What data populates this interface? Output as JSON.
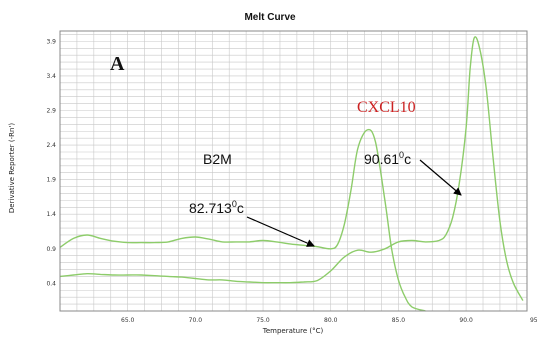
{
  "chart_data": {
    "type": "line",
    "title": "Melt Curve",
    "xlabel": "Temperature (°C)",
    "ylabel": "Derivative Reporter (-Rn')",
    "xlim": [
      60,
      94.5
    ],
    "ylim": [
      0,
      4.05
    ],
    "x_ticks": [
      {
        "value": 65,
        "label": "65.0"
      },
      {
        "value": 70,
        "label": "70.0"
      },
      {
        "value": 75,
        "label": "75.0"
      },
      {
        "value": 80,
        "label": "80.0"
      },
      {
        "value": 85,
        "label": "85.0"
      },
      {
        "value": 90,
        "label": "90.0"
      },
      {
        "value": 95,
        "label": "95"
      }
    ],
    "y_ticks": [
      {
        "value": 0.4,
        "label": "0.4"
      },
      {
        "value": 0.9,
        "label": "0.9"
      },
      {
        "value": 1.4,
        "label": "1.4"
      },
      {
        "value": 1.9,
        "label": "1.9"
      },
      {
        "value": 2.4,
        "label": "2.4"
      },
      {
        "value": 2.9,
        "label": "2.9"
      },
      {
        "value": 3.4,
        "label": "3.4"
      },
      {
        "value": 3.9,
        "label": "3.9"
      }
    ],
    "grid": true,
    "series": [
      {
        "color": "#8dcc6a",
        "points": [
          [
            60,
            0.92
          ],
          [
            61,
            1.05
          ],
          [
            62,
            1.1
          ],
          [
            63,
            1.05
          ],
          [
            64,
            1.01
          ],
          [
            65,
            0.99
          ],
          [
            66,
            0.99
          ],
          [
            67,
            0.99
          ],
          [
            68,
            1.0
          ],
          [
            69,
            1.05
          ],
          [
            70,
            1.07
          ],
          [
            71,
            1.04
          ],
          [
            72,
            1.0
          ],
          [
            73,
            1.0
          ],
          [
            74,
            1.0
          ],
          [
            75,
            1.02
          ],
          [
            76,
            1.0
          ],
          [
            77,
            0.97
          ],
          [
            78,
            0.95
          ],
          [
            79,
            0.93
          ],
          [
            80,
            0.9
          ],
          [
            80.5,
            0.96
          ],
          [
            81,
            1.25
          ],
          [
            81.5,
            1.75
          ],
          [
            82,
            2.35
          ],
          [
            82.7,
            2.62
          ],
          [
            83.3,
            2.45
          ],
          [
            84,
            1.6
          ],
          [
            84.5,
            0.9
          ],
          [
            85,
            0.45
          ],
          [
            85.5,
            0.2
          ],
          [
            86,
            0.06
          ],
          [
            87,
            0.0
          ]
        ]
      },
      {
        "color": "#8dcc6a",
        "points": [
          [
            60,
            0.5
          ],
          [
            61,
            0.52
          ],
          [
            62,
            0.54
          ],
          [
            63,
            0.53
          ],
          [
            64,
            0.52
          ],
          [
            65,
            0.52
          ],
          [
            66,
            0.52
          ],
          [
            67,
            0.51
          ],
          [
            68,
            0.5
          ],
          [
            69,
            0.49
          ],
          [
            70,
            0.47
          ],
          [
            71,
            0.45
          ],
          [
            72,
            0.45
          ],
          [
            73,
            0.43
          ],
          [
            74,
            0.42
          ],
          [
            75,
            0.41
          ],
          [
            76,
            0.41
          ],
          [
            77,
            0.41
          ],
          [
            78,
            0.42
          ],
          [
            79,
            0.44
          ],
          [
            80,
            0.58
          ],
          [
            81,
            0.78
          ],
          [
            82,
            0.88
          ],
          [
            83,
            0.85
          ],
          [
            84,
            0.9
          ],
          [
            85,
            1.0
          ],
          [
            86,
            1.02
          ],
          [
            87,
            1.0
          ],
          [
            88,
            1.02
          ],
          [
            88.5,
            1.1
          ],
          [
            89,
            1.35
          ],
          [
            89.5,
            1.85
          ],
          [
            90,
            2.65
          ],
          [
            90.3,
            3.5
          ],
          [
            90.6,
            3.95
          ],
          [
            91,
            3.8
          ],
          [
            91.5,
            3.2
          ],
          [
            92,
            2.2
          ],
          [
            92.5,
            1.3
          ],
          [
            93,
            0.72
          ],
          [
            93.5,
            0.4
          ],
          [
            94.2,
            0.15
          ]
        ]
      }
    ],
    "annotations": [
      {
        "text": "A"
      },
      {
        "text": "B2M"
      },
      {
        "text": "CXCL10"
      },
      {
        "text": "82.713",
        "sup": "0",
        "unit": "c"
      },
      {
        "text": "90.61",
        "sup": "0",
        "unit": "c"
      }
    ]
  }
}
